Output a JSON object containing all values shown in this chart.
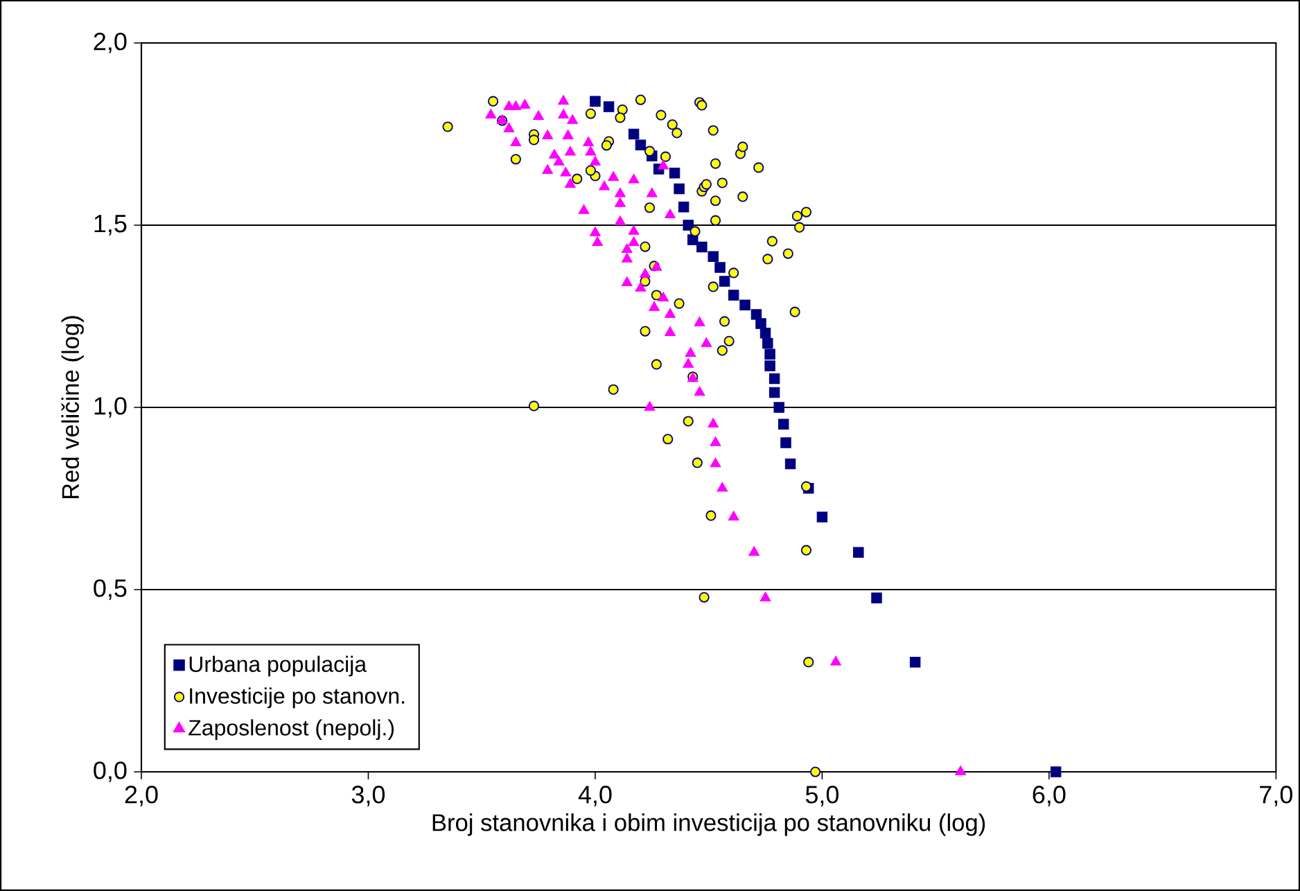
{
  "chart_data": {
    "type": "scatter",
    "xlabel": "Broj stanovnika i obim investicija po stanovniku (log)",
    "ylabel": "Red veličine (log)",
    "xlim": [
      2.0,
      7.0
    ],
    "ylim": [
      0.0,
      2.0
    ],
    "xticks": [
      {
        "value": 2.0,
        "label": "2,0"
      },
      {
        "value": 3.0,
        "label": "3,0"
      },
      {
        "value": 4.0,
        "label": "4,0"
      },
      {
        "value": 5.0,
        "label": "5,0"
      },
      {
        "value": 6.0,
        "label": "6,0"
      },
      {
        "value": 7.0,
        "label": "7,0"
      }
    ],
    "yticks": [
      {
        "value": 0.0,
        "label": "0,0"
      },
      {
        "value": 0.5,
        "label": "0,5"
      },
      {
        "value": 1.0,
        "label": "1,0"
      },
      {
        "value": 1.5,
        "label": "1,5"
      },
      {
        "value": 2.0,
        "label": "2,0"
      }
    ],
    "grid": "y",
    "legend": "bottom left",
    "series": [
      {
        "name": "Urbana populacija",
        "color": "#000080",
        "marker": "square",
        "x": [
          6.03,
          5.41,
          5.24,
          5.16,
          5.0,
          4.94,
          4.86,
          4.84,
          4.83,
          4.81,
          4.79,
          4.79,
          4.77,
          4.77,
          4.76,
          4.75,
          4.73,
          4.71,
          4.66,
          4.61,
          4.57,
          4.55,
          4.52,
          4.47,
          4.43,
          4.41,
          4.39,
          4.37,
          4.35,
          4.28,
          4.25,
          4.2,
          4.17,
          4.11,
          4.06,
          4.0
        ],
        "values": [
          0.0,
          0.301,
          0.477,
          0.602,
          0.699,
          0.778,
          0.845,
          0.903,
          0.954,
          1.0,
          1.041,
          1.079,
          1.114,
          1.146,
          1.176,
          1.204,
          1.23,
          1.255,
          1.281,
          1.308,
          1.346,
          1.384,
          1.414,
          1.44,
          1.46,
          1.5,
          1.55,
          1.6,
          1.643,
          1.654,
          1.69,
          1.72,
          1.75,
          null,
          1.825,
          1.84
        ]
      },
      {
        "name": "Investicije po stanovn.",
        "color": "#ffff00",
        "marker": "circle",
        "x": [
          4.97,
          4.94,
          4.48,
          4.93,
          4.51,
          4.93,
          4.45,
          4.32,
          4.41,
          3.73,
          4.08,
          4.27,
          4.43,
          4.56,
          4.59,
          4.22,
          4.57,
          4.88,
          4.37,
          4.27,
          4.52,
          4.61,
          4.22,
          4.26,
          4.76,
          4.85,
          4.78,
          4.22,
          4.44,
          4.9,
          4.89,
          4.93,
          4.53,
          4.24,
          4.53,
          4.65,
          4.47,
          4.48,
          4.49,
          4.56,
          4.0,
          3.98,
          3.92,
          3.65,
          4.53,
          4.72,
          4.24,
          4.31,
          4.64,
          4.65,
          4.06,
          4.05,
          3.73,
          3.73,
          4.36,
          4.52,
          4.34,
          4.29,
          3.98,
          4.12,
          4.11,
          3.59,
          3.55,
          4.2,
          4.46,
          4.47,
          3.35
        ],
        "values": [
          0.0,
          0.301,
          0.479,
          0.608,
          0.703,
          0.783,
          0.848,
          0.913,
          0.962,
          1.004,
          1.049,
          1.118,
          1.084,
          1.156,
          1.182,
          1.209,
          1.236,
          1.262,
          1.285,
          1.308,
          1.331,
          1.369,
          1.346,
          1.388,
          1.407,
          1.422,
          1.456,
          1.441,
          1.483,
          1.494,
          1.525,
          1.536,
          1.513,
          1.548,
          1.567,
          1.578,
          1.593,
          1.605,
          1.612,
          1.616,
          1.635,
          1.65,
          1.627,
          1.681,
          1.669,
          1.658,
          1.703,
          1.688,
          1.696,
          1.715,
          1.73,
          1.719,
          1.749,
          1.734,
          1.753,
          1.76,
          1.776,
          1.802,
          1.806,
          1.817,
          1.795,
          1.787,
          1.84,
          1.844,
          1.837,
          1.829,
          1.77
        ]
      },
      {
        "name": "Zaposlenost (nepolj.)",
        "color": "#ff00ff",
        "marker": "triangle",
        "x": [
          5.61,
          5.06,
          4.75,
          4.7,
          4.61,
          4.56,
          4.53,
          4.53,
          4.52,
          4.24,
          4.46,
          4.43,
          4.41,
          4.42,
          4.49,
          4.33,
          4.46,
          4.33,
          4.26,
          4.3,
          4.2,
          4.14,
          4.27,
          4.22,
          4.14,
          4.14,
          4.17,
          4.17,
          4.0,
          4.01,
          4.11,
          4.33,
          3.95,
          4.11,
          4.11,
          4.25,
          4.17,
          4.04,
          4.08,
          3.89,
          4.0,
          3.79,
          3.87,
          3.84,
          3.82,
          3.89,
          3.98,
          3.97,
          3.79,
          3.88,
          3.65,
          3.62,
          3.9,
          3.75,
          3.86,
          3.54,
          3.59,
          3.62,
          3.69,
          3.65,
          3.86,
          4.3
        ],
        "values": [
          0.0,
          0.301,
          0.477,
          0.602,
          0.699,
          0.778,
          0.845,
          0.903,
          0.954,
          1.0,
          1.041,
          1.079,
          1.118,
          1.148,
          1.175,
          1.205,
          1.232,
          1.255,
          1.274,
          1.3,
          1.327,
          1.342,
          1.384,
          1.365,
          1.407,
          1.433,
          1.452,
          1.483,
          1.479,
          1.452,
          1.509,
          1.528,
          1.54,
          1.559,
          1.586,
          1.586,
          1.624,
          1.605,
          1.631,
          1.612,
          1.673,
          1.65,
          1.643,
          1.673,
          1.692,
          1.7,
          1.7,
          1.726,
          1.745,
          1.745,
          1.726,
          1.764,
          1.787,
          1.798,
          1.802,
          1.802,
          1.787,
          1.825,
          1.829,
          1.825,
          1.84,
          1.662
        ]
      }
    ]
  }
}
